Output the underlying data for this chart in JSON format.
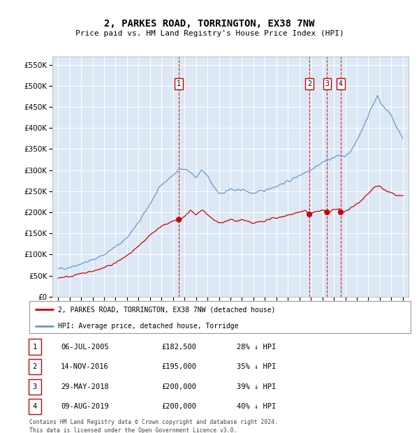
{
  "title": "2, PARKES ROAD, TORRINGTON, EX38 7NW",
  "subtitle": "Price paid vs. HM Land Registry's House Price Index (HPI)",
  "legend_line1": "2, PARKES ROAD, TORRINGTON, EX38 7NW (detached house)",
  "legend_line2": "HPI: Average price, detached house, Torridge",
  "footer1": "Contains HM Land Registry data © Crown copyright and database right 2024.",
  "footer2": "This data is licensed under the Open Government Licence v3.0.",
  "sale_color": "#cc0000",
  "hpi_color": "#6699cc",
  "background_chart": "#dce8f5",
  "grid_color": "#ffffff",
  "vline_color": "#cc0000",
  "sales": [
    {
      "date_num": 2005.51,
      "price": 182500,
      "label": "1"
    },
    {
      "date_num": 2016.87,
      "price": 195000,
      "label": "2"
    },
    {
      "date_num": 2018.41,
      "price": 200000,
      "label": "3"
    },
    {
      "date_num": 2019.6,
      "price": 200000,
      "label": "4"
    }
  ],
  "table": [
    {
      "num": "1",
      "date": "06-JUL-2005",
      "price": "£182,500",
      "pct": "28% ↓ HPI"
    },
    {
      "num": "2",
      "date": "14-NOV-2016",
      "price": "£195,000",
      "pct": "35% ↓ HPI"
    },
    {
      "num": "3",
      "date": "29-MAY-2018",
      "price": "£200,000",
      "pct": "39% ↓ HPI"
    },
    {
      "num": "4",
      "date": "09-AUG-2019",
      "price": "£200,000",
      "pct": "40% ↓ HPI"
    }
  ],
  "ylim": [
    0,
    570000
  ],
  "yticks": [
    0,
    50000,
    100000,
    150000,
    200000,
    250000,
    300000,
    350000,
    400000,
    450000,
    500000,
    550000
  ],
  "xlim_start": 1994.5,
  "xlim_end": 2025.5,
  "hpi_keypoints": [
    [
      1995.0,
      65000
    ],
    [
      1996.0,
      70000
    ],
    [
      1997.0,
      78000
    ],
    [
      1998.0,
      87000
    ],
    [
      1999.0,
      100000
    ],
    [
      2000.0,
      118000
    ],
    [
      2001.0,
      140000
    ],
    [
      2002.0,
      175000
    ],
    [
      2003.0,
      220000
    ],
    [
      2004.0,
      265000
    ],
    [
      2005.5,
      300000
    ],
    [
      2006.0,
      305000
    ],
    [
      2006.5,
      295000
    ],
    [
      2007.0,
      282000
    ],
    [
      2007.5,
      300000
    ],
    [
      2008.0,
      285000
    ],
    [
      2008.5,
      262000
    ],
    [
      2009.0,
      245000
    ],
    [
      2009.5,
      248000
    ],
    [
      2010.0,
      255000
    ],
    [
      2010.5,
      250000
    ],
    [
      2011.0,
      255000
    ],
    [
      2011.5,
      248000
    ],
    [
      2012.0,
      245000
    ],
    [
      2012.5,
      248000
    ],
    [
      2013.0,
      252000
    ],
    [
      2013.5,
      258000
    ],
    [
      2014.0,
      262000
    ],
    [
      2014.5,
      268000
    ],
    [
      2015.0,
      273000
    ],
    [
      2015.5,
      280000
    ],
    [
      2016.0,
      288000
    ],
    [
      2016.5,
      295000
    ],
    [
      2017.0,
      302000
    ],
    [
      2017.5,
      310000
    ],
    [
      2018.0,
      318000
    ],
    [
      2018.5,
      325000
    ],
    [
      2019.0,
      330000
    ],
    [
      2019.5,
      335000
    ],
    [
      2020.0,
      332000
    ],
    [
      2020.5,
      345000
    ],
    [
      2021.0,
      368000
    ],
    [
      2021.5,
      400000
    ],
    [
      2022.0,
      430000
    ],
    [
      2022.5,
      460000
    ],
    [
      2022.8,
      478000
    ],
    [
      2023.0,
      465000
    ],
    [
      2023.3,
      450000
    ],
    [
      2023.7,
      440000
    ],
    [
      2024.0,
      430000
    ],
    [
      2024.5,
      400000
    ],
    [
      2025.0,
      375000
    ]
  ],
  "sale_keypoints": [
    [
      1995.0,
      45000
    ],
    [
      1996.0,
      48000
    ],
    [
      1997.0,
      54000
    ],
    [
      1998.0,
      60000
    ],
    [
      1999.0,
      68000
    ],
    [
      2000.0,
      80000
    ],
    [
      2001.0,
      97000
    ],
    [
      2002.0,
      118000
    ],
    [
      2003.0,
      145000
    ],
    [
      2004.0,
      168000
    ],
    [
      2005.0,
      178000
    ],
    [
      2005.51,
      182500
    ],
    [
      2006.0,
      190000
    ],
    [
      2006.5,
      205000
    ],
    [
      2007.0,
      192000
    ],
    [
      2007.5,
      205000
    ],
    [
      2008.0,
      195000
    ],
    [
      2008.5,
      182000
    ],
    [
      2009.0,
      175000
    ],
    [
      2009.5,
      178000
    ],
    [
      2010.0,
      183000
    ],
    [
      2010.5,
      178000
    ],
    [
      2011.0,
      183000
    ],
    [
      2011.5,
      177000
    ],
    [
      2012.0,
      173000
    ],
    [
      2012.5,
      177000
    ],
    [
      2013.0,
      180000
    ],
    [
      2013.5,
      184000
    ],
    [
      2014.0,
      187000
    ],
    [
      2014.5,
      190000
    ],
    [
      2015.0,
      193000
    ],
    [
      2015.5,
      197000
    ],
    [
      2016.0,
      200000
    ],
    [
      2016.5,
      203000
    ],
    [
      2016.87,
      195000
    ],
    [
      2017.0,
      198000
    ],
    [
      2017.5,
      202000
    ],
    [
      2018.0,
      205000
    ],
    [
      2018.41,
      200000
    ],
    [
      2018.7,
      203000
    ],
    [
      2019.0,
      206000
    ],
    [
      2019.5,
      208000
    ],
    [
      2019.6,
      200000
    ],
    [
      2020.0,
      203000
    ],
    [
      2020.5,
      210000
    ],
    [
      2021.0,
      220000
    ],
    [
      2021.5,
      232000
    ],
    [
      2022.0,
      245000
    ],
    [
      2022.5,
      258000
    ],
    [
      2023.0,
      262000
    ],
    [
      2023.3,
      255000
    ],
    [
      2023.7,
      248000
    ],
    [
      2024.0,
      245000
    ],
    [
      2024.5,
      240000
    ],
    [
      2025.0,
      238000
    ]
  ]
}
